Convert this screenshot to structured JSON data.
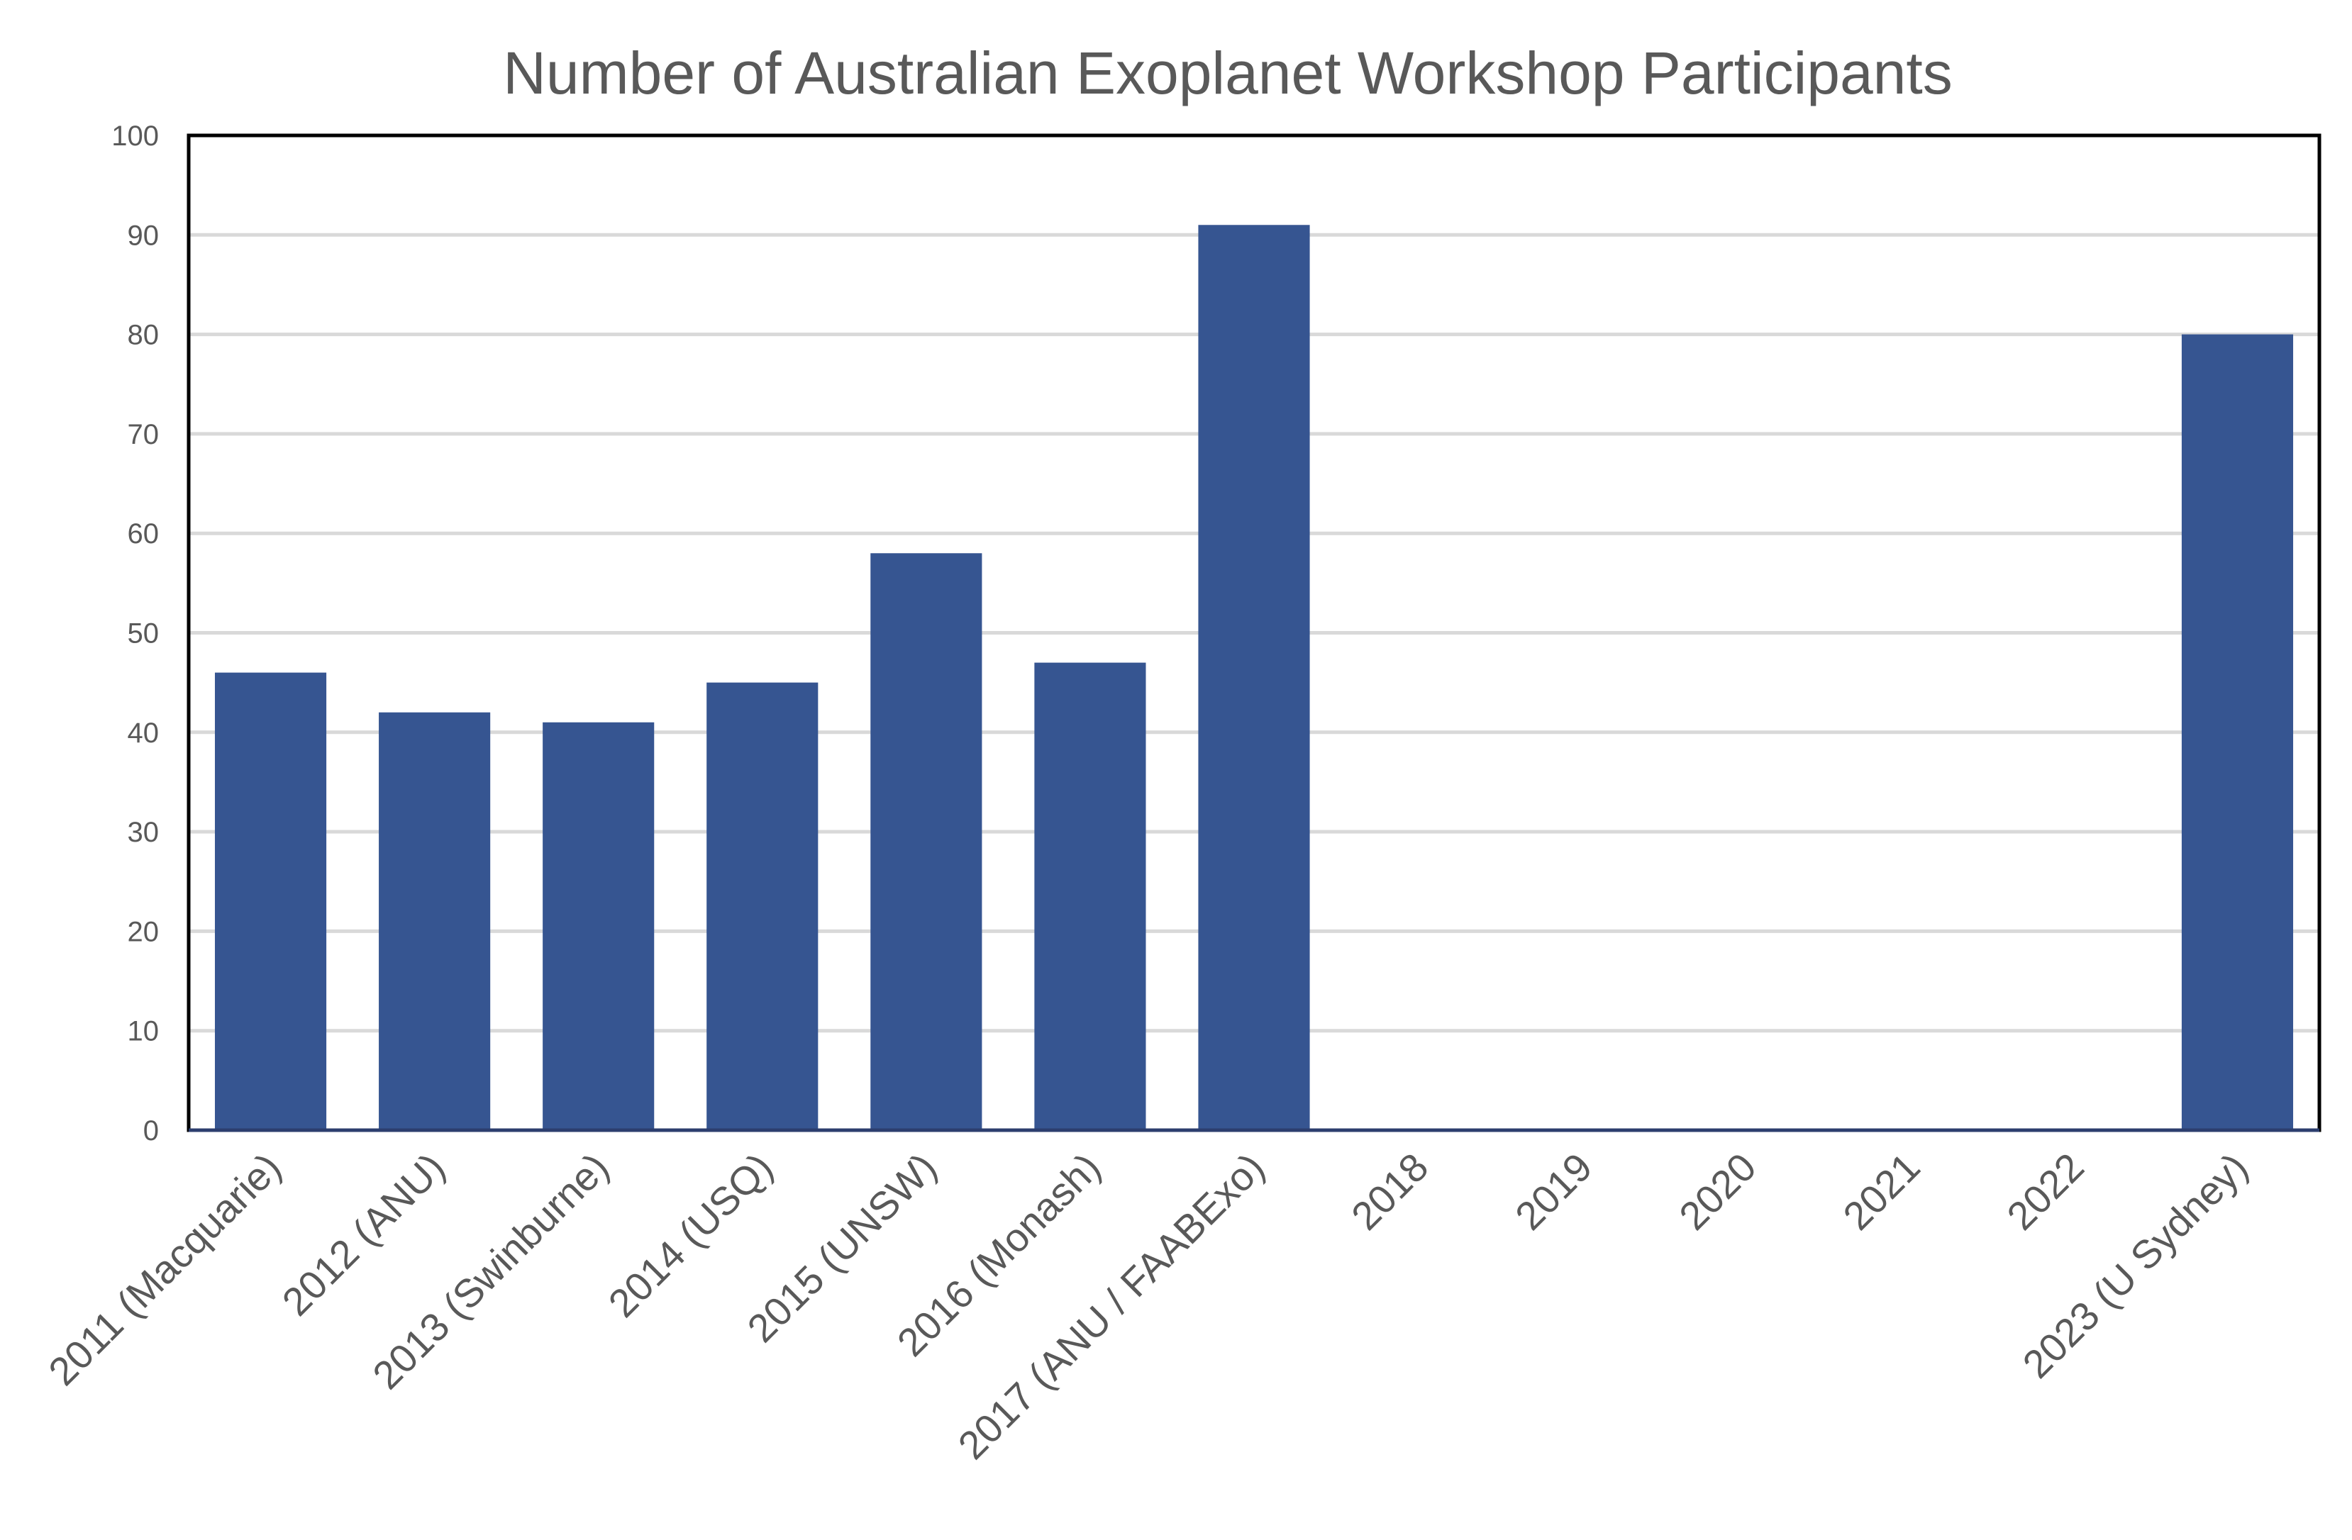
{
  "chart_data": {
    "type": "bar",
    "title": "Number of Australian Exoplanet Workshop Participants",
    "xlabel": "",
    "ylabel": "",
    "categories": [
      "2011 (Macquarie)",
      "2012 (ANU)",
      "2013 (Swinburne)",
      "2014 (USQ)",
      "2015 (UNSW)",
      "2016 (Monash)",
      "2017 (ANU / FAABExo)",
      "2018",
      "2019",
      "2020",
      "2021",
      "2022",
      "2023 (U Sydney)"
    ],
    "values": [
      46,
      42,
      41,
      45,
      58,
      47,
      91,
      0,
      0,
      0,
      0,
      0,
      80
    ],
    "ylim": [
      0,
      100
    ],
    "yticks": [
      0,
      10,
      20,
      30,
      40,
      50,
      60,
      70,
      80,
      90,
      100
    ],
    "grid": true,
    "legend": "none",
    "colors": {
      "bar": "#365591",
      "grid": "#d9d9d9",
      "text": "#595959",
      "frame": "#000000",
      "baseline": "#2c3e6e"
    }
  }
}
